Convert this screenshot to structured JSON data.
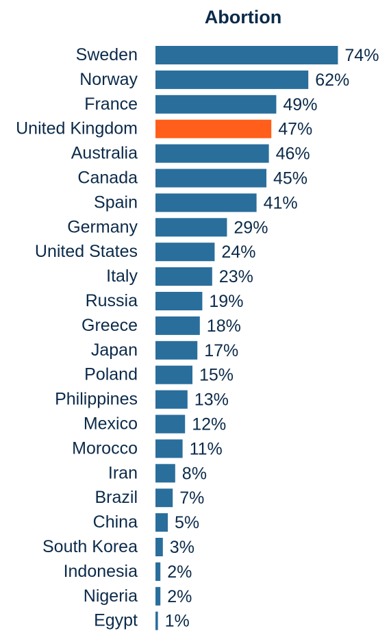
{
  "chart_data": {
    "type": "bar",
    "orientation": "horizontal",
    "title": "Abortion",
    "categories": [
      "Sweden",
      "Norway",
      "France",
      "United Kingdom",
      "Australia",
      "Canada",
      "Spain",
      "Germany",
      "United States",
      "Italy",
      "Russia",
      "Greece",
      "Japan",
      "Poland",
      "Philippines",
      "Mexico",
      "Morocco",
      "Iran",
      "Brazil",
      "China",
      "South Korea",
      "Indonesia",
      "Nigeria",
      "Egypt"
    ],
    "values": [
      74,
      62,
      49,
      47,
      46,
      45,
      41,
      29,
      24,
      23,
      19,
      18,
      17,
      15,
      13,
      12,
      11,
      8,
      7,
      5,
      3,
      2,
      2,
      1
    ],
    "value_labels": [
      "74%",
      "62%",
      "49%",
      "47%",
      "46%",
      "45%",
      "41%",
      "29%",
      "24%",
      "23%",
      "19%",
      "18%",
      "17%",
      "15%",
      "13%",
      "12%",
      "11%",
      "8%",
      "7%",
      "5%",
      "3%",
      "2%",
      "2%",
      "1%"
    ],
    "unit": "%",
    "highlight_category": "United Kingdom",
    "colors": {
      "bar": "#2a6e9c",
      "highlight": "#ff5f1a",
      "text": "#0b2a4a"
    },
    "grid": false,
    "legend": "none"
  }
}
